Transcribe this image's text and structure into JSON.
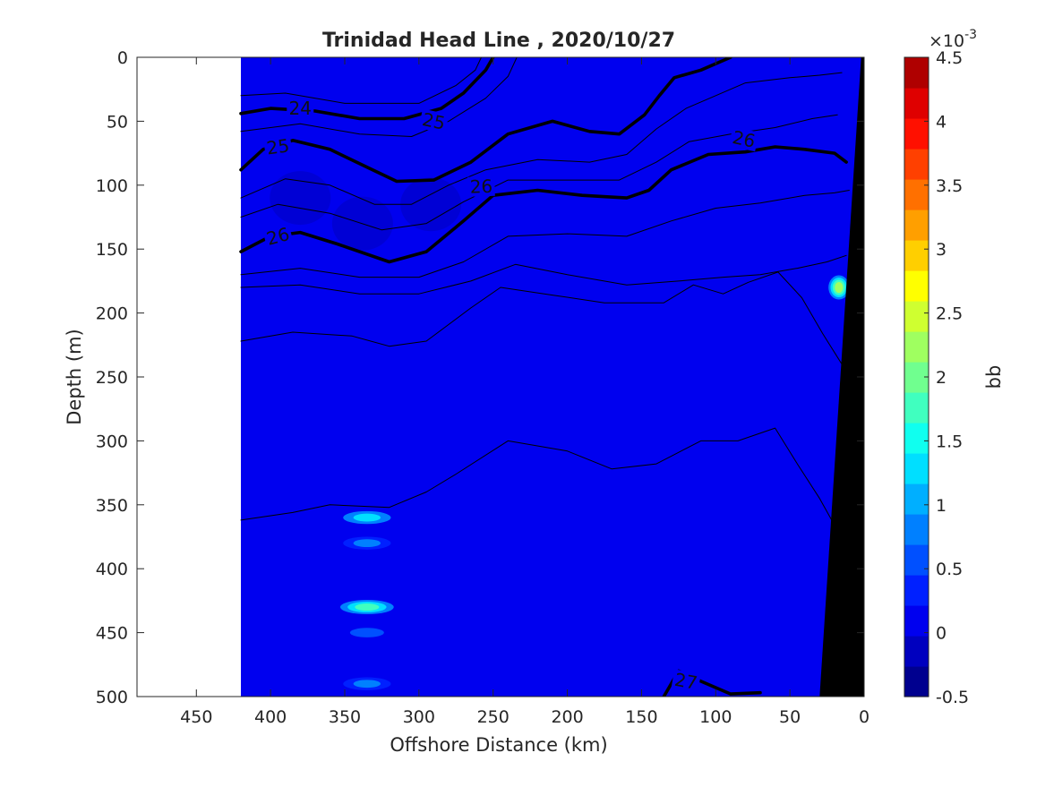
{
  "chart_data": {
    "type": "heatmap",
    "title": "Trinidad Head Line , 2020/10/27",
    "xlabel": "Offshore Distance (km)",
    "ylabel": "Depth (m)",
    "xlim": [
      490,
      0
    ],
    "ylim": [
      0,
      500
    ],
    "x_reversed": true,
    "y_reversed": true,
    "x_ticks": [
      450,
      400,
      350,
      300,
      250,
      200,
      150,
      100,
      50,
      0
    ],
    "y_ticks": [
      0,
      50,
      100,
      150,
      200,
      250,
      300,
      350,
      400,
      450,
      500
    ],
    "data_x_range": [
      420,
      0
    ],
    "background_value": 0.12,
    "colorbar": {
      "label": "bb",
      "exponent_label": "×10",
      "exponent_power": "-3",
      "ticks": [
        -0.5,
        0,
        0.5,
        1,
        1.5,
        2,
        2.5,
        3,
        3.5,
        4,
        4.5
      ],
      "tick_labels": [
        "-0.5",
        "0",
        "0.5",
        "1",
        "1.5",
        "2",
        "2.5",
        "3",
        "3.5",
        "4",
        "4.5"
      ],
      "range": [
        -0.5,
        4.5
      ],
      "colors": [
        "#00008f",
        "#0000bf",
        "#0000ef",
        "#0020ff",
        "#0050ff",
        "#0080ff",
        "#00afff",
        "#00dfff",
        "#10ffef",
        "#40ffbf",
        "#70ff8f",
        "#9fff60",
        "#cfff30",
        "#ffff00",
        "#ffcf00",
        "#ff9f00",
        "#ff7000",
        "#ff4000",
        "#ff1000",
        "#df0000",
        "#af0000"
      ]
    },
    "hotspots": [
      {
        "x": 335,
        "depth": 360,
        "value": 1.2
      },
      {
        "x": 335,
        "depth": 380,
        "value": 0.9
      },
      {
        "x": 335,
        "depth": 430,
        "value": 1.8
      },
      {
        "x": 335,
        "depth": 450,
        "value": 0.6
      },
      {
        "x": 335,
        "depth": 490,
        "value": 0.9
      },
      {
        "x": 17,
        "depth": 180,
        "value": 2.3
      }
    ],
    "darker_patches": [
      {
        "x": 380,
        "depth": 110,
        "value": -0.1
      },
      {
        "x": 338,
        "depth": 130,
        "value": -0.1
      },
      {
        "x": 292,
        "depth": 115,
        "value": -0.05
      }
    ],
    "bathymetry": {
      "color": "#000000",
      "points": [
        [
          2,
          0
        ],
        [
          0,
          0
        ],
        [
          0,
          500
        ],
        [
          30,
          500
        ]
      ]
    },
    "contours": [
      {
        "level": "24",
        "major": true,
        "points": [
          [
            420,
            44
          ],
          [
            400,
            40
          ],
          [
            370,
            42
          ],
          [
            340,
            48
          ],
          [
            310,
            48
          ],
          [
            285,
            40
          ],
          [
            270,
            28
          ],
          [
            255,
            10
          ],
          [
            250,
            0
          ]
        ]
      },
      {
        "level": "25",
        "major": true,
        "points": [
          [
            420,
            88
          ],
          [
            405,
            72
          ],
          [
            385,
            65
          ],
          [
            360,
            72
          ],
          [
            335,
            86
          ],
          [
            315,
            97
          ],
          [
            290,
            96
          ],
          [
            265,
            82
          ],
          [
            240,
            60
          ],
          [
            210,
            50
          ],
          [
            185,
            58
          ],
          [
            165,
            60
          ],
          [
            148,
            45
          ],
          [
            138,
            30
          ],
          [
            128,
            16
          ],
          [
            110,
            10
          ],
          [
            90,
            0
          ]
        ]
      },
      {
        "level": "26",
        "major": true,
        "points": [
          [
            420,
            152
          ],
          [
            400,
            140
          ],
          [
            380,
            137
          ],
          [
            355,
            146
          ],
          [
            320,
            160
          ],
          [
            295,
            152
          ],
          [
            270,
            128
          ],
          [
            250,
            108
          ],
          [
            220,
            104
          ],
          [
            190,
            108
          ],
          [
            160,
            110
          ],
          [
            145,
            104
          ],
          [
            130,
            88
          ],
          [
            105,
            76
          ],
          [
            80,
            74
          ],
          [
            60,
            70
          ],
          [
            40,
            72
          ],
          [
            20,
            75
          ],
          [
            12,
            82
          ]
        ]
      },
      {
        "level": "27",
        "major": true,
        "points": [
          [
            135,
            500
          ],
          [
            125,
            480
          ],
          [
            110,
            488
          ],
          [
            90,
            498
          ],
          [
            70,
            497
          ]
        ]
      },
      {
        "level": "",
        "major": false,
        "points": [
          [
            420,
            30
          ],
          [
            390,
            28
          ],
          [
            350,
            36
          ],
          [
            300,
            36
          ],
          [
            275,
            22
          ],
          [
            262,
            10
          ],
          [
            258,
            0
          ]
        ]
      },
      {
        "level": "",
        "major": false,
        "points": [
          [
            420,
            58
          ],
          [
            380,
            52
          ],
          [
            340,
            60
          ],
          [
            305,
            62
          ],
          [
            280,
            50
          ],
          [
            255,
            32
          ],
          [
            240,
            15
          ],
          [
            234,
            0
          ]
        ]
      },
      {
        "level": "",
        "major": false,
        "points": [
          [
            420,
            110
          ],
          [
            390,
            95
          ],
          [
            360,
            100
          ],
          [
            330,
            115
          ],
          [
            305,
            115
          ],
          [
            280,
            100
          ],
          [
            255,
            88
          ],
          [
            220,
            80
          ],
          [
            185,
            82
          ],
          [
            160,
            76
          ],
          [
            140,
            56
          ],
          [
            120,
            40
          ],
          [
            100,
            30
          ],
          [
            80,
            20
          ],
          [
            50,
            16
          ],
          [
            30,
            14
          ],
          [
            15,
            12
          ]
        ]
      },
      {
        "level": "",
        "major": false,
        "points": [
          [
            420,
            125
          ],
          [
            395,
            115
          ],
          [
            360,
            122
          ],
          [
            325,
            135
          ],
          [
            295,
            130
          ],
          [
            270,
            113
          ],
          [
            240,
            96
          ],
          [
            200,
            96
          ],
          [
            165,
            96
          ],
          [
            140,
            82
          ],
          [
            118,
            66
          ],
          [
            90,
            60
          ],
          [
            60,
            55
          ],
          [
            35,
            48
          ],
          [
            18,
            45
          ]
        ]
      },
      {
        "level": "",
        "major": false,
        "points": [
          [
            420,
            170
          ],
          [
            380,
            165
          ],
          [
            340,
            172
          ],
          [
            300,
            172
          ],
          [
            270,
            160
          ],
          [
            240,
            140
          ],
          [
            200,
            138
          ],
          [
            160,
            140
          ],
          [
            130,
            128
          ],
          [
            100,
            118
          ],
          [
            70,
            114
          ],
          [
            40,
            108
          ],
          [
            20,
            106
          ],
          [
            10,
            104
          ]
        ]
      },
      {
        "level": "",
        "major": false,
        "points": [
          [
            420,
            180
          ],
          [
            380,
            178
          ],
          [
            340,
            185
          ],
          [
            300,
            185
          ],
          [
            265,
            175
          ],
          [
            235,
            162
          ],
          [
            200,
            170
          ],
          [
            160,
            178
          ],
          [
            125,
            175
          ],
          [
            95,
            172
          ],
          [
            70,
            170
          ],
          [
            45,
            165
          ],
          [
            25,
            160
          ],
          [
            12,
            155
          ]
        ]
      },
      {
        "level": "",
        "major": false,
        "points": [
          [
            420,
            222
          ],
          [
            385,
            215
          ],
          [
            345,
            218
          ],
          [
            320,
            226
          ],
          [
            295,
            222
          ],
          [
            265,
            196
          ],
          [
            245,
            180
          ],
          [
            210,
            186
          ],
          [
            175,
            192
          ],
          [
            135,
            192
          ],
          [
            115,
            178
          ],
          [
            95,
            185
          ],
          [
            78,
            176
          ],
          [
            58,
            168
          ],
          [
            42,
            188
          ],
          [
            28,
            216
          ],
          [
            15,
            240
          ],
          [
            8,
            260
          ]
        ]
      },
      {
        "level": "",
        "major": false,
        "points": [
          [
            420,
            362
          ],
          [
            385,
            356
          ],
          [
            360,
            350
          ],
          [
            320,
            352
          ],
          [
            295,
            340
          ],
          [
            275,
            326
          ],
          [
            240,
            300
          ],
          [
            200,
            308
          ],
          [
            170,
            322
          ],
          [
            140,
            318
          ],
          [
            110,
            300
          ],
          [
            85,
            300
          ],
          [
            60,
            290
          ],
          [
            45,
            318
          ],
          [
            30,
            345
          ],
          [
            18,
            370
          ],
          [
            10,
            390
          ]
        ]
      }
    ],
    "contour_labels": [
      {
        "text": "24",
        "x": 380,
        "depth": 40,
        "rot": 0
      },
      {
        "text": "25",
        "x": 395,
        "depth": 70,
        "rot": -8
      },
      {
        "text": "26",
        "x": 395,
        "depth": 140,
        "rot": -15
      },
      {
        "text": "25",
        "x": 290,
        "depth": 50,
        "rot": 12
      },
      {
        "text": "26",
        "x": 258,
        "depth": 101,
        "rot": -2
      },
      {
        "text": "26",
        "x": 81,
        "depth": 64,
        "rot": 12
      },
      {
        "text": "27",
        "x": 120,
        "depth": 488,
        "rot": 10
      }
    ]
  }
}
